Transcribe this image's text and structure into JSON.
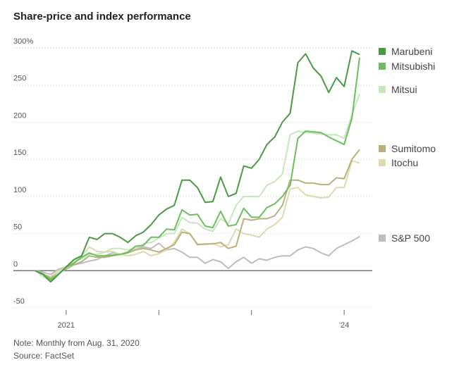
{
  "chart_data": {
    "type": "line",
    "title": "Share-price and index performance",
    "xlabel": "",
    "ylabel": "",
    "ylim": [
      -50,
      300
    ],
    "y_ticks": [
      -50,
      0,
      50,
      100,
      150,
      200,
      250,
      300
    ],
    "y_tick_labels": [
      "-50",
      "0",
      "50",
      "100",
      "150",
      "200",
      "250",
      "300%"
    ],
    "x_range": [
      0,
      43
    ],
    "x_ticks": [
      {
        "index": 4,
        "label": "2021"
      },
      {
        "index": 16,
        "label": ""
      },
      {
        "index": 28,
        "label": ""
      },
      {
        "index": 40,
        "label": "'24"
      }
    ],
    "grid": true,
    "legend_position": "right",
    "series": [
      {
        "name": "Marubeni",
        "color": "#4a9a45",
        "values": [
          0,
          -5,
          -15,
          -5,
          5,
          15,
          20,
          45,
          42,
          50,
          50,
          45,
          38,
          47,
          52,
          62,
          75,
          83,
          88,
          122,
          122,
          112,
          92,
          93,
          126,
          100,
          104,
          141,
          138,
          150,
          170,
          180,
          200,
          212,
          280,
          292,
          273,
          262,
          240,
          260,
          248,
          296,
          291
        ]
      },
      {
        "name": "Mitsubishi",
        "color": "#6cbe5e",
        "values": [
          0,
          -5,
          -12,
          -5,
          5,
          10,
          18,
          24,
          20,
          20,
          21,
          22,
          25,
          33,
          34,
          45,
          45,
          56,
          55,
          82,
          75,
          76,
          60,
          58,
          80,
          60,
          62,
          84,
          72,
          72,
          85,
          90,
          100,
          115,
          178,
          188,
          187,
          186,
          180,
          175,
          170,
          205,
          287
        ]
      },
      {
        "name": "Mitsui",
        "color": "#c6e6bc",
        "values": [
          0,
          -8,
          -14,
          -3,
          6,
          12,
          16,
          22,
          22,
          25,
          30,
          30,
          28,
          30,
          36,
          38,
          44,
          50,
          50,
          72,
          65,
          64,
          56,
          53,
          70,
          63,
          88,
          100,
          100,
          100,
          115,
          120,
          130,
          183,
          188,
          186,
          185,
          184,
          183,
          183,
          178,
          210,
          238
        ]
      },
      {
        "name": "Sumitomo",
        "color": "#b9b17c",
        "values": [
          0,
          -4,
          -10,
          -3,
          2,
          8,
          12,
          20,
          18,
          18,
          20,
          22,
          24,
          28,
          30,
          28,
          25,
          30,
          35,
          52,
          50,
          35,
          36,
          36,
          38,
          30,
          33,
          70,
          68,
          70,
          70,
          74,
          88,
          122,
          122,
          118,
          118,
          116,
          116,
          125,
          124,
          150,
          163
        ]
      },
      {
        "name": "Itochu",
        "color": "#dcdcae",
        "values": [
          0,
          -5,
          -8,
          0,
          4,
          12,
          20,
          32,
          26,
          25,
          26,
          22,
          20,
          22,
          26,
          20,
          23,
          28,
          38,
          56,
          50,
          36,
          35,
          37,
          32,
          35,
          56,
          50,
          48,
          45,
          56,
          62,
          72,
          110,
          112,
          102,
          100,
          98,
          99,
          112,
          112,
          148,
          145
        ]
      },
      {
        "name": "S&P 500",
        "color": "#bdbdbd",
        "values": [
          0,
          -2,
          -5,
          2,
          5,
          8,
          10,
          13,
          15,
          20,
          24,
          22,
          25,
          30,
          32,
          30,
          37,
          28,
          30,
          25,
          18,
          18,
          10,
          15,
          12,
          3,
          12,
          18,
          10,
          16,
          14,
          18,
          20,
          20,
          28,
          32,
          30,
          24,
          20,
          30,
          35,
          40,
          46
        ]
      }
    ],
    "zero_line": true,
    "note": "Note: Monthly from Aug. 31, 2020",
    "source": "Source: FactSet"
  }
}
